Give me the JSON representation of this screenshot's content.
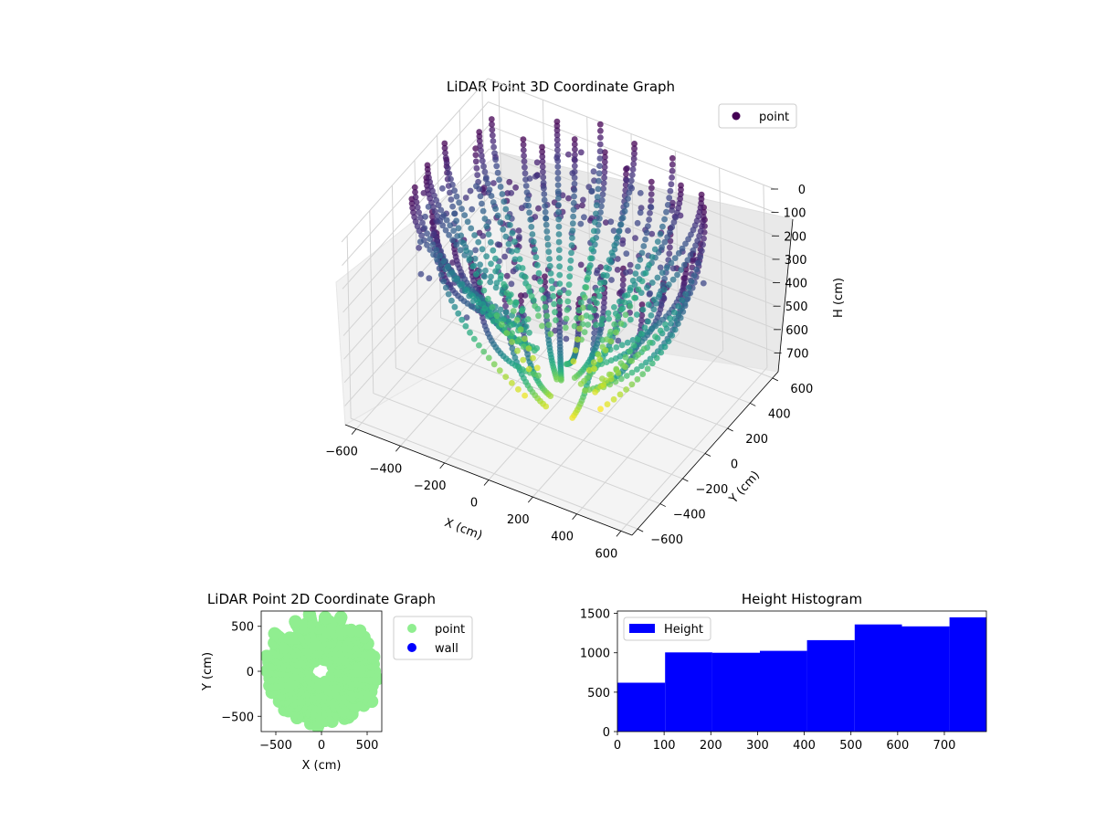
{
  "chart_data": [
    {
      "type": "scatter",
      "projection": "3d",
      "title": "LiDAR Point 3D Coordinate Graph",
      "xlabel": "X (cm)",
      "ylabel": "Y (cm)",
      "zlabel": "H (cm)",
      "x_ticks": [
        -600,
        -400,
        -200,
        0,
        200,
        400,
        600
      ],
      "y_ticks": [
        -600,
        -400,
        -200,
        0,
        200,
        400,
        600
      ],
      "z_ticks": [
        0,
        100,
        200,
        300,
        400,
        500,
        600,
        700
      ],
      "xlim": [
        -650,
        650
      ],
      "ylim": [
        -650,
        650
      ],
      "zlim": [
        780,
        0
      ],
      "z_inverted": true,
      "colormap": "viridis",
      "legend": {
        "position": "top-right",
        "entries": [
          {
            "label": "point",
            "color": "#440154"
          }
        ]
      },
      "grid": true
    },
    {
      "type": "scatter",
      "title": "LiDAR Point 2D Coordinate Graph",
      "xlabel": "X (cm)",
      "ylabel": "Y (cm)",
      "xlim": [
        -660,
        660
      ],
      "ylim": [
        -670,
        670
      ],
      "x_ticks": [
        -500,
        0,
        500
      ],
      "y_ticks": [
        -500,
        0,
        500
      ],
      "series": [
        {
          "name": "point",
          "color": "#90ee90"
        },
        {
          "name": "wall",
          "color": "#0000ff"
        }
      ],
      "legend": {
        "position": "outside-right"
      }
    },
    {
      "type": "bar",
      "histogram": true,
      "title": "Height Histogram",
      "bins": [
        {
          "start": 0,
          "end": 102,
          "value": 620
        },
        {
          "start": 102,
          "end": 203,
          "value": 1005
        },
        {
          "start": 203,
          "end": 305,
          "value": 1000
        },
        {
          "start": 305,
          "end": 406,
          "value": 1025
        },
        {
          "start": 406,
          "end": 508,
          "value": 1160
        },
        {
          "start": 508,
          "end": 609,
          "value": 1360
        },
        {
          "start": 609,
          "end": 711,
          "value": 1335
        },
        {
          "start": 711,
          "end": 790,
          "value": 1450
        }
      ],
      "xlim": [
        0,
        790
      ],
      "ylim": [
        0,
        1530
      ],
      "x_ticks": [
        0,
        100,
        200,
        300,
        400,
        500,
        600,
        700
      ],
      "y_ticks": [
        0,
        500,
        1000,
        1500
      ],
      "color": "#0000ff",
      "legend": {
        "position": "top-left",
        "entries": [
          {
            "label": "Height",
            "color": "#0000ff"
          }
        ]
      }
    }
  ]
}
